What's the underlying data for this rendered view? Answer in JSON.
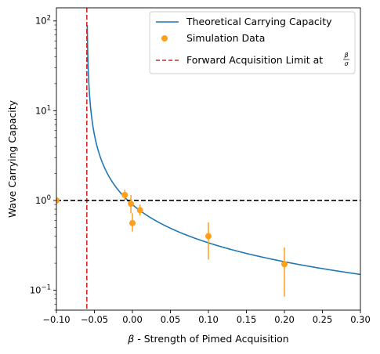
{
  "chart_data": {
    "type": "line",
    "title": "",
    "xlabel_symbol": "β",
    "xlabel_rest": " - Strength of Pimed Acquisition",
    "ylabel": "Wave Carrying Capacity",
    "xlim": [
      -0.1,
      0.3
    ],
    "ylim": [
      0.06,
      140
    ],
    "yscale": "log",
    "grid": false,
    "legend_position": "top-right",
    "x_ticks": [
      {
        "value": -0.1,
        "label": "−0.10"
      },
      {
        "value": -0.05,
        "label": "−0.05"
      },
      {
        "value": 0.0,
        "label": "0.00"
      },
      {
        "value": 0.05,
        "label": "0.05"
      },
      {
        "value": 0.1,
        "label": "0.10"
      },
      {
        "value": 0.15,
        "label": "0.15"
      },
      {
        "value": 0.2,
        "label": "0.20"
      },
      {
        "value": 0.25,
        "label": "0.25"
      },
      {
        "value": 0.3,
        "label": "0.30"
      }
    ],
    "y_ticks": [
      {
        "value": 0.1,
        "base": "10",
        "exp": "−1"
      },
      {
        "value": 1,
        "base": "10",
        "exp": "0"
      },
      {
        "value": 10,
        "base": "10",
        "exp": "1"
      },
      {
        "value": 100,
        "base": "10",
        "exp": "2"
      }
    ],
    "series": [
      {
        "name": "Theoretical Carrying Capacity",
        "kind": "line",
        "color": "#1f77b4",
        "pole": -0.06,
        "scale": 0.054
      },
      {
        "name": "Simulation Data",
        "kind": "errorbar-scatter",
        "color": "#ff9f1c",
        "points": [
          {
            "x": -0.1,
            "y": 1.0,
            "ylo": 1.0,
            "yhi": 1.0
          },
          {
            "x": -0.01,
            "y": 1.15,
            "ylo": 1.0,
            "yhi": 1.32
          },
          {
            "x": -0.002,
            "y": 0.92,
            "ylo": 0.72,
            "yhi": 1.15
          },
          {
            "x": 0.0,
            "y": 0.56,
            "ylo": 0.45,
            "yhi": 0.72
          },
          {
            "x": 0.01,
            "y": 0.78,
            "ylo": 0.68,
            "yhi": 0.9
          },
          {
            "x": 0.1,
            "y": 0.4,
            "ylo": 0.22,
            "yhi": 0.57
          },
          {
            "x": 0.2,
            "y": 0.195,
            "ylo": 0.085,
            "yhi": 0.3
          }
        ]
      }
    ],
    "reference_lines": [
      {
        "name_prefix": "Forward Acquisition Limit at ",
        "fraction_num": "β",
        "fraction_den": "σ",
        "orientation": "vertical",
        "value": -0.06,
        "color": "#d62728",
        "style": "dashed"
      },
      {
        "orientation": "horizontal",
        "value": 1.0,
        "color": "#000000",
        "style": "dashed"
      }
    ]
  }
}
